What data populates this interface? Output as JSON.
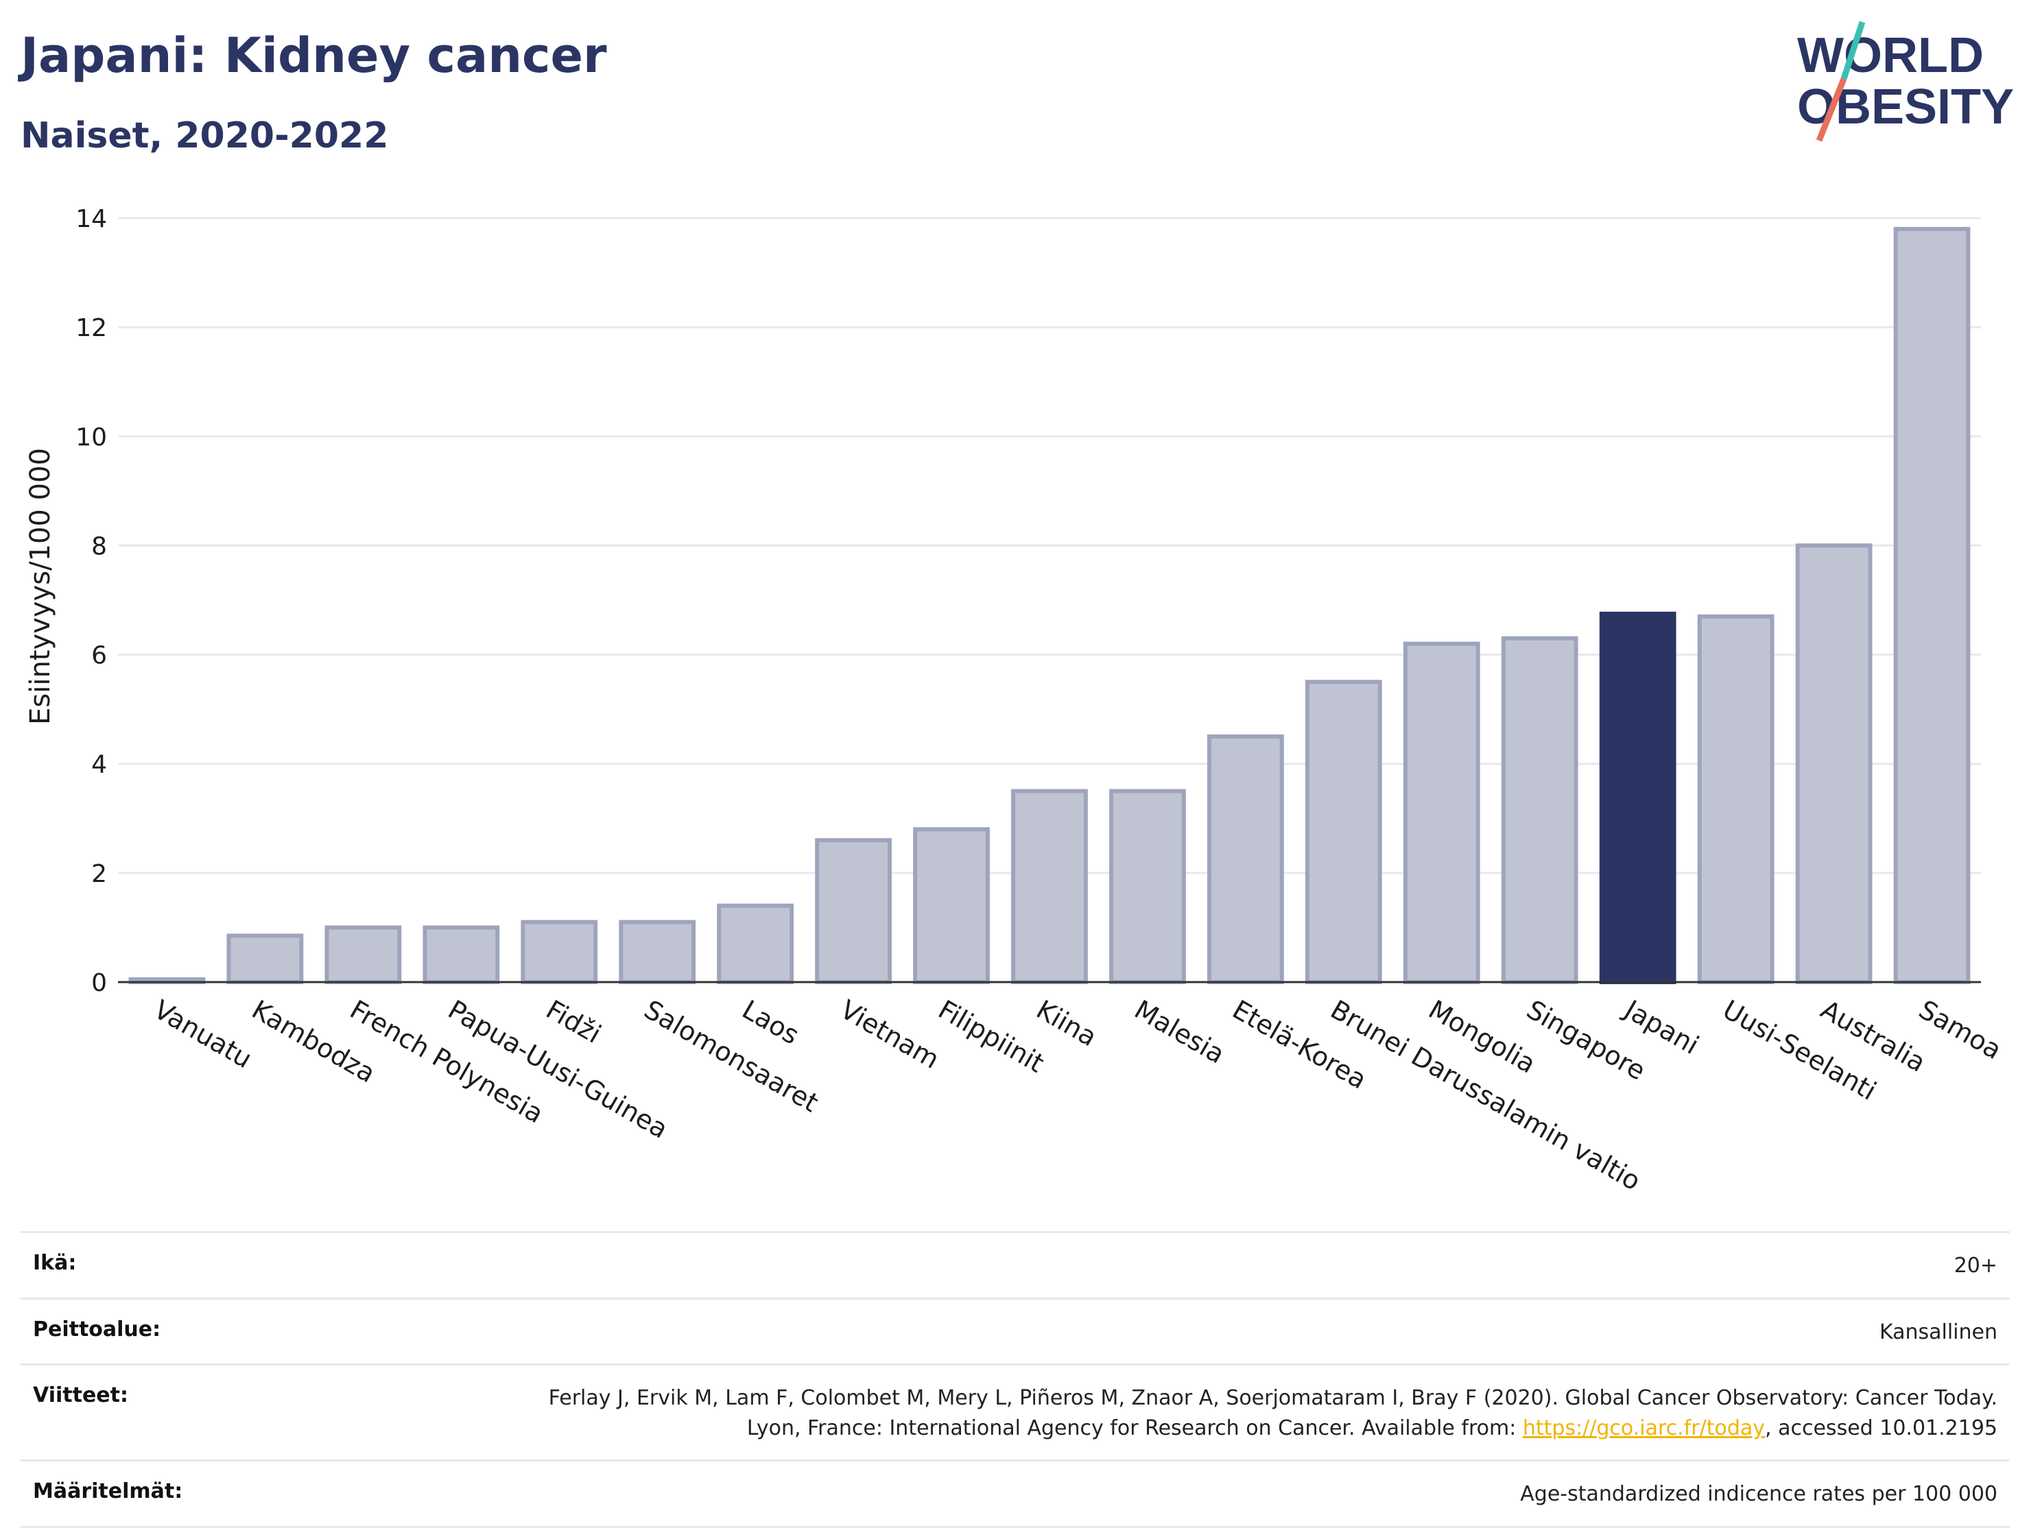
{
  "header": {
    "title": "Japani: Kidney cancer",
    "subtitle": "Naiset, 2020-2022"
  },
  "logo": {
    "line1": "WORLD",
    "line2": "OBESITY",
    "colors": {
      "text": "#2b3564",
      "teal": "#3bbfb0",
      "coral": "#e96f5c"
    }
  },
  "chart_data": {
    "type": "bar",
    "categories": [
      "Vanuatu",
      "Kambodza",
      "French Polynesia",
      "Papua-Uusi-Guinea",
      "Fidži",
      "Salomonsaaret",
      "Laos",
      "Vietnam",
      "Filippiinit",
      "Kiina",
      "Malesia",
      "Etelä-Korea",
      "Brunei Darussalamin valtio",
      "Mongolia",
      "Singapore",
      "Japani",
      "Uusi-Seelanti",
      "Australia",
      "Samoa"
    ],
    "values": [
      0.05,
      0.85,
      1.0,
      1.0,
      1.1,
      1.1,
      1.4,
      2.6,
      2.8,
      3.5,
      3.5,
      4.5,
      5.5,
      6.2,
      6.3,
      6.75,
      6.7,
      8.0,
      13.8
    ],
    "highlight": "Japani",
    "ylabel": "Esiintyvyys/100 000",
    "xlabel": "",
    "ylim": [
      0,
      14
    ],
    "yticks": [
      0,
      2,
      4,
      6,
      8,
      10,
      12,
      14
    ],
    "grid": true,
    "colors": {
      "bar": "#c0c4d2",
      "bar_edge": "#9ea4bc",
      "highlight": "#2b3564",
      "grid": "#e8e8ee",
      "axis": "#333333"
    }
  },
  "meta": {
    "rows": [
      {
        "key": "Ikä:",
        "value": "20+"
      },
      {
        "key": "Peittoalue:",
        "value": "Kansallinen"
      },
      {
        "key": "Viitteet:",
        "value_before": "Ferlay J, Ervik M, Lam F, Colombet M, Mery L, Piñeros M, Znaor A, Soerjomataram I, Bray F (2020). Global Cancer Observatory: Cancer Today. Lyon, France: International Agency for Research on Cancer. Available from: ",
        "link": "https://gco.iarc.fr/today",
        "value_after": ", accessed 10.01.2195"
      },
      {
        "key": "Määritelmät:",
        "value": "Age-standardized indicence rates per 100 000"
      }
    ]
  }
}
